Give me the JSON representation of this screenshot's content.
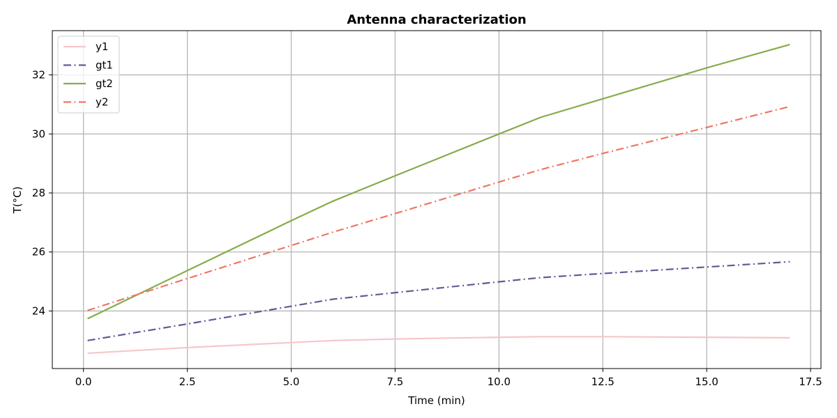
{
  "chart_data": {
    "type": "line",
    "title": "Antenna characterization",
    "xlabel": "Time (min)",
    "ylabel": "T(°C)",
    "xlim": [
      -0.75,
      17.75
    ],
    "ylim": [
      22.05,
      33.5
    ],
    "xticks": [
      0.0,
      2.5,
      5.0,
      7.5,
      10.0,
      12.5,
      15.0,
      17.5
    ],
    "xtick_labels": [
      "0.0",
      "2.5",
      "5.0",
      "7.5",
      "10.0",
      "12.5",
      "15.0",
      "17.5"
    ],
    "yticks": [
      24,
      26,
      28,
      30,
      32
    ],
    "ytick_labels": [
      "24",
      "26",
      "28",
      "30",
      "32"
    ],
    "grid": true,
    "legend_position": "top-left",
    "series": [
      {
        "name": "y1",
        "color": "#f5c6cb",
        "style": "solid",
        "x": [
          0.1,
          2.5,
          5.0,
          6.0,
          7.5,
          10.0,
          11.0,
          12.5,
          15.0,
          17.0
        ],
        "y": [
          22.57,
          22.76,
          22.93,
          23.0,
          23.05,
          23.11,
          23.13,
          23.13,
          23.11,
          23.09
        ]
      },
      {
        "name": "gt1",
        "color": "#635a93",
        "style": "dashdot",
        "x": [
          0.1,
          2.5,
          5.0,
          6.0,
          7.5,
          10.0,
          11.0,
          12.5,
          15.0,
          17.0
        ],
        "y": [
          23.0,
          23.56,
          24.16,
          24.4,
          24.62,
          24.99,
          25.13,
          25.27,
          25.49,
          25.67
        ]
      },
      {
        "name": "gt2",
        "color": "#85ac4b",
        "style": "solid",
        "x": [
          0.1,
          2.5,
          5.0,
          6.0,
          7.5,
          10.0,
          11.0,
          12.5,
          15.0,
          17.0
        ],
        "y": [
          23.74,
          25.37,
          27.06,
          27.72,
          28.58,
          30.0,
          30.56,
          31.19,
          32.24,
          33.03
        ]
      },
      {
        "name": "y2",
        "color": "#f07566",
        "style": "dashdot",
        "x": [
          0.1,
          2.5,
          5.0,
          6.0,
          7.5,
          10.0,
          11.0,
          12.5,
          15.0,
          17.0
        ],
        "y": [
          24.02,
          25.1,
          26.22,
          26.67,
          27.3,
          28.37,
          28.79,
          29.34,
          30.22,
          30.93
        ]
      }
    ]
  }
}
